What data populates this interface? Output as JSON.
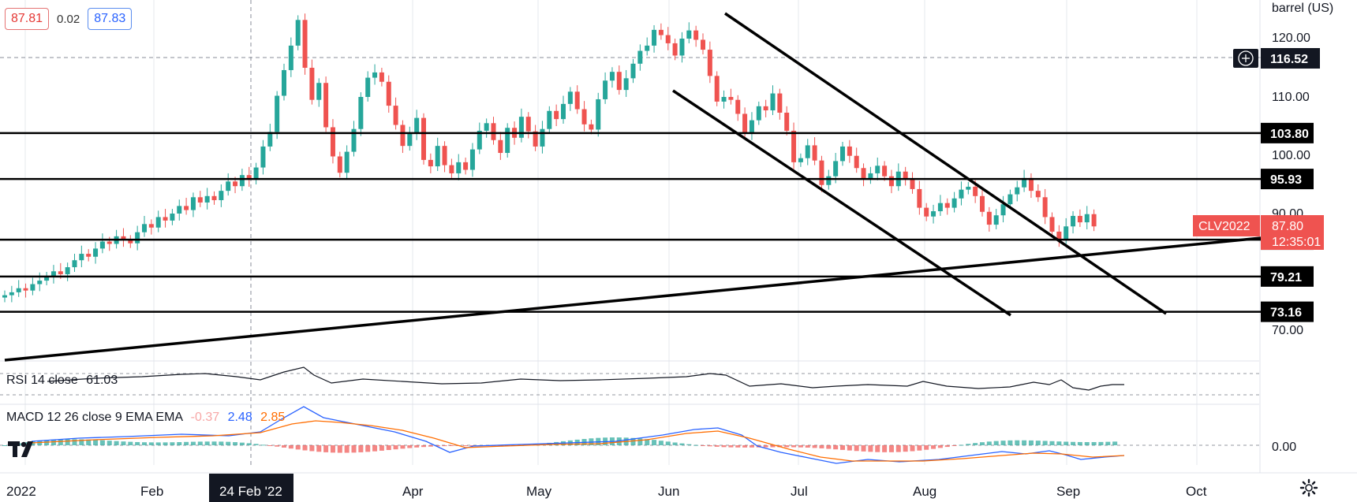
{
  "header": {
    "bid": "87.81",
    "spread": "0.02",
    "ask": "87.83",
    "unit": "barrel (US)"
  },
  "price_axis": {
    "ticks": [
      "120.00",
      "110.00",
      "100.00",
      "90.00",
      "70.00"
    ],
    "crosshair_value": "116.52",
    "symbol": "CLV2022",
    "last_price": "87.80",
    "countdown": "12:35:01"
  },
  "time_axis": {
    "labels": [
      "2022",
      "Feb",
      "Apr",
      "May",
      "Jun",
      "Jul",
      "Aug",
      "Sep",
      "Oct"
    ],
    "crosshair_date": "24 Feb '22"
  },
  "indicators": {
    "rsi": {
      "label": "RSI 14 close",
      "value": "61.03"
    },
    "macd": {
      "label": "MACD 12 26 close 9 EMA EMA",
      "histogram": "-0.37",
      "macd": "2.48",
      "signal": "2.85",
      "zero_tick": "0.00"
    }
  },
  "colors": {
    "up": "#26a69a",
    "down": "#ef5350",
    "macd_line": "#2962ff",
    "signal_line": "#ff6d00"
  },
  "chart_data": {
    "type": "candlestick",
    "symbol": "CLV2022",
    "yrange": [
      64,
      127
    ],
    "horizontal_levels": [
      {
        "label": "103.80",
        "value": 103.8
      },
      {
        "label": "95.93",
        "value": 95.93
      },
      {
        "label": "85.53",
        "value": 85.53
      },
      {
        "label": "79.21",
        "value": 79.21
      },
      {
        "label": "73.16",
        "value": 73.16
      }
    ],
    "closes": [
      76.0,
      76.5,
      77.2,
      76.8,
      77.9,
      78.5,
      79.2,
      80.1,
      79.6,
      80.8,
      82.0,
      83.1,
      82.6,
      84.0,
      85.2,
      84.8,
      86.1,
      85.5,
      84.9,
      86.8,
      88.2,
      87.6,
      89.4,
      88.8,
      90.0,
      91.3,
      90.6,
      92.8,
      91.9,
      93.0,
      92.3,
      93.9,
      95.5,
      94.7,
      96.6,
      95.8,
      97.9,
      101.5,
      104.0,
      110.2,
      114.6,
      118.8,
      123.2,
      115.0,
      109.5,
      112.4,
      104.8,
      99.8,
      97.0,
      100.6,
      104.5,
      110.0,
      113.3,
      114.2,
      112.6,
      108.5,
      105.2,
      101.6,
      103.8,
      106.4,
      99.2,
      98.1,
      101.6,
      98.3,
      96.9,
      98.8,
      97.5,
      101.0,
      104.2,
      105.5,
      102.6,
      100.4,
      104.7,
      103.0,
      106.6,
      104.1,
      101.5,
      104.5,
      107.6,
      106.2,
      108.8,
      110.9,
      107.9,
      105.3,
      104.4,
      109.6,
      112.8,
      114.3,
      111.2,
      113.2,
      115.7,
      117.9,
      118.8,
      121.5,
      120.6,
      119.2,
      117.1,
      120.0,
      121.4,
      119.8,
      118.1,
      113.6,
      109.2,
      110.0,
      109.5,
      107.1,
      103.8,
      106.0,
      108.4,
      107.7,
      110.6,
      107.3,
      104.2,
      98.8,
      99.5,
      101.7,
      99.1,
      94.9,
      96.4,
      99.0,
      101.5,
      99.9,
      97.8,
      95.9,
      96.9,
      98.2,
      96.4,
      94.7,
      97.2,
      96.0,
      94.2,
      91.0,
      89.5,
      90.4,
      91.8,
      91.0,
      92.6,
      94.1,
      94.6,
      93.0,
      90.3,
      88.1,
      89.7,
      91.6,
      93.3,
      94.5,
      96.1,
      93.9,
      92.8,
      89.4,
      86.9,
      85.5,
      87.8,
      89.6,
      88.5,
      89.9,
      87.8
    ]
  }
}
